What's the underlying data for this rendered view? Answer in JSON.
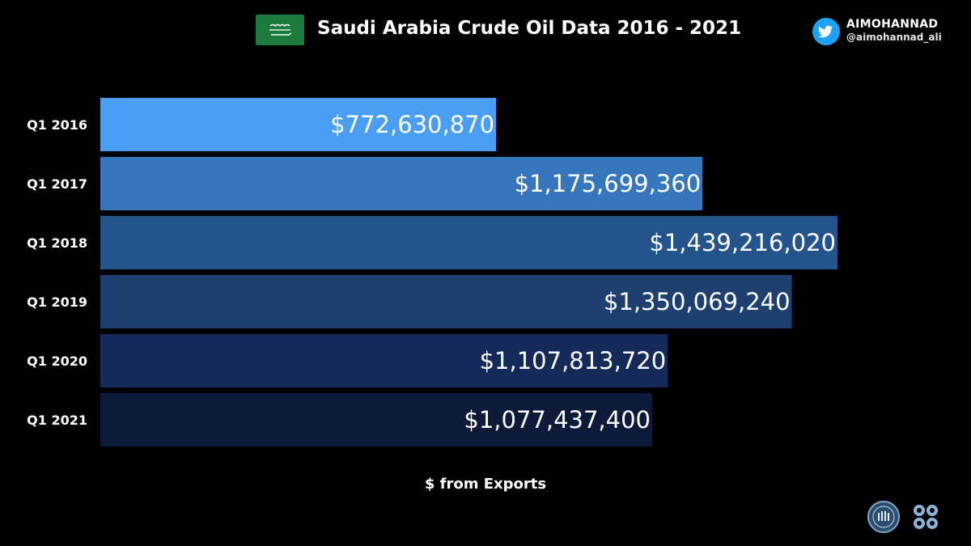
{
  "header": {
    "title": "Saudi Arabia Crude Oil Data 2016 - 2021",
    "brand_name": "AIMOHANNAD",
    "brand_handle": "@aimohannad_ali"
  },
  "icons": {
    "flag": "saudi-flag-icon",
    "twitter": "twitter-bird-icon",
    "logo_left": "circular-emblem-logo",
    "logo_right": "opec-logo"
  },
  "colors": {
    "background": "#000000",
    "flag_green": "#1b7a3e",
    "twitter_blue": "#1da1f2"
  },
  "chart_data": {
    "type": "bar",
    "orientation": "horizontal",
    "title": "Saudi Arabia Crude Oil Data 2016 - 2021",
    "xlabel": "$ from Exports",
    "categories": [
      "Q1 2016",
      "Q1 2017",
      "Q1 2018",
      "Q1 2019",
      "Q1 2020",
      "Q1 2021"
    ],
    "values": [
      772630870,
      1175699360,
      1439216020,
      1350069240,
      1107813720,
      1077437400
    ],
    "value_labels": [
      "$772,630,870",
      "$1,175,699,360",
      "$1,439,216,020",
      "$1,350,069,240",
      "$1,107,813,720",
      "$1,077,437,400"
    ],
    "bar_colors": [
      "#4a9ff5",
      "#3576bd",
      "#24548c",
      "#1d4070",
      "#142a58",
      "#0d1a3a"
    ],
    "xlim": [
      0,
      1439216020
    ],
    "grid": false,
    "legend": "none"
  }
}
